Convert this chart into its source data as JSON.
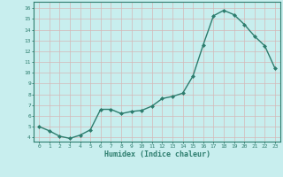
{
  "x": [
    0,
    1,
    2,
    3,
    4,
    5,
    6,
    7,
    8,
    9,
    10,
    11,
    12,
    13,
    14,
    15,
    16,
    17,
    18,
    19,
    20,
    21,
    22,
    23
  ],
  "y": [
    5.0,
    4.6,
    4.1,
    3.9,
    4.2,
    4.7,
    6.6,
    6.6,
    6.2,
    6.4,
    6.5,
    6.9,
    7.6,
    7.8,
    8.1,
    9.7,
    12.6,
    15.3,
    15.8,
    15.4,
    14.5,
    13.4,
    12.5,
    10.4
  ],
  "line_color": "#2d7d6e",
  "bg_color": "#c8eeee",
  "grid_color": "#aed4d4",
  "xlabel": "Humidex (Indice chaleur)",
  "ylabel_ticks": [
    4,
    5,
    6,
    7,
    8,
    9,
    10,
    11,
    12,
    13,
    14,
    15,
    16
  ],
  "xlim": [
    -0.5,
    23.5
  ],
  "ylim": [
    3.6,
    16.6
  ],
  "xticks": [
    0,
    1,
    2,
    3,
    4,
    5,
    6,
    7,
    8,
    9,
    10,
    11,
    12,
    13,
    14,
    15,
    16,
    17,
    18,
    19,
    20,
    21,
    22,
    23
  ],
  "marker": "D",
  "marker_size": 2.0,
  "line_width": 1.0
}
